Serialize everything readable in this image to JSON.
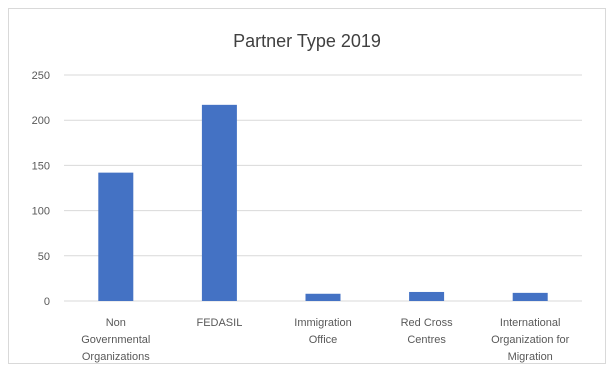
{
  "chart_data": {
    "type": "bar",
    "title": "Partner Type 2019",
    "xlabel": "",
    "ylabel": "",
    "categories": [
      "Non Governmental Organizations",
      "FEDASIL",
      "Immigration Office",
      "Red Cross Centres",
      "International Organization for Migration"
    ],
    "category_lines": [
      [
        "Non",
        "Governmental",
        "Organizations"
      ],
      [
        "FEDASIL"
      ],
      [
        "Immigration",
        "Office"
      ],
      [
        "Red Cross",
        "Centres"
      ],
      [
        "International",
        "Organization for",
        "Migration"
      ]
    ],
    "values": [
      142,
      217,
      8,
      10,
      9
    ],
    "ylim": [
      0,
      250
    ],
    "yticks": [
      0,
      50,
      100,
      150,
      200,
      250
    ],
    "grid": true,
    "legend": "none",
    "bar_color": "#4472c4",
    "grid_color": "#d9d9d9"
  }
}
